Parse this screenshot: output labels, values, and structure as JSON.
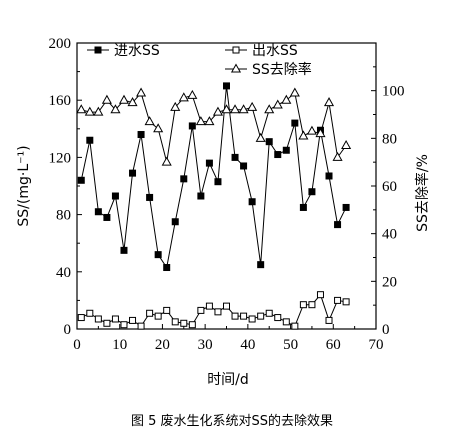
{
  "caption": "图 5 废水生化系统对SS的去除效果",
  "chart_data": {
    "type": "line",
    "xlabel": "时间/d",
    "ylabel": "SS/(mg·L⁻¹)",
    "y2label": "SS去除率/%",
    "xlim": [
      0,
      70
    ],
    "ylim": [
      0,
      200
    ],
    "y2lim": [
      0,
      120
    ],
    "xticks": [
      "0",
      "10",
      "20",
      "30",
      "40",
      "50",
      "60",
      "70"
    ],
    "yticks": [
      "0",
      "40",
      "80",
      "120",
      "160",
      "200"
    ],
    "y2ticks": [
      "0",
      "20",
      "40",
      "60",
      "80",
      "100"
    ],
    "grid": false,
    "legend_position": "top",
    "series": [
      {
        "name": "进水SS",
        "axis": "left",
        "marker": "filled-square",
        "x": [
          1,
          3,
          5,
          7,
          9,
          11,
          13,
          15,
          17,
          19,
          21,
          23,
          25,
          27,
          29,
          31,
          33,
          35,
          37,
          39,
          41,
          43,
          45,
          47,
          49,
          51,
          53,
          55,
          57,
          59,
          61,
          63
        ],
        "y": [
          104,
          132,
          82,
          78,
          93,
          55,
          109,
          136,
          92,
          52,
          43,
          75,
          105,
          142,
          93,
          116,
          103,
          170,
          120,
          114,
          89,
          45,
          131,
          122,
          125,
          144,
          85,
          96,
          139,
          107,
          73,
          85
        ]
      },
      {
        "name": "出水SS",
        "axis": "left",
        "marker": "open-square",
        "x": [
          1,
          3,
          5,
          7,
          9,
          11,
          13,
          15,
          17,
          19,
          21,
          23,
          25,
          27,
          29,
          31,
          33,
          35,
          37,
          39,
          41,
          43,
          45,
          47,
          49,
          51,
          53,
          55,
          57,
          59,
          61,
          63
        ],
        "y": [
          8,
          11,
          7,
          4,
          7,
          3,
          6,
          2,
          11,
          9,
          13,
          5,
          4,
          3,
          13,
          16,
          12,
          16,
          9,
          9,
          7,
          9,
          11,
          8,
          5,
          2,
          17,
          17,
          24,
          6,
          20,
          19
        ]
      },
      {
        "name": "SS去除率",
        "axis": "right",
        "marker": "open-triangle",
        "x": [
          1,
          3,
          5,
          7,
          9,
          11,
          13,
          15,
          17,
          19,
          21,
          23,
          25,
          27,
          29,
          31,
          33,
          35,
          37,
          39,
          41,
          43,
          45,
          47,
          49,
          51,
          53,
          55,
          57,
          59,
          61,
          63
        ],
        "y": [
          92,
          91,
          91,
          96,
          92,
          96,
          95,
          99,
          87,
          84,
          70,
          93,
          97,
          98,
          87,
          87,
          91,
          92,
          92,
          92,
          93,
          80,
          92,
          94,
          96,
          99,
          81,
          83,
          82,
          95,
          72,
          77
        ]
      }
    ]
  }
}
